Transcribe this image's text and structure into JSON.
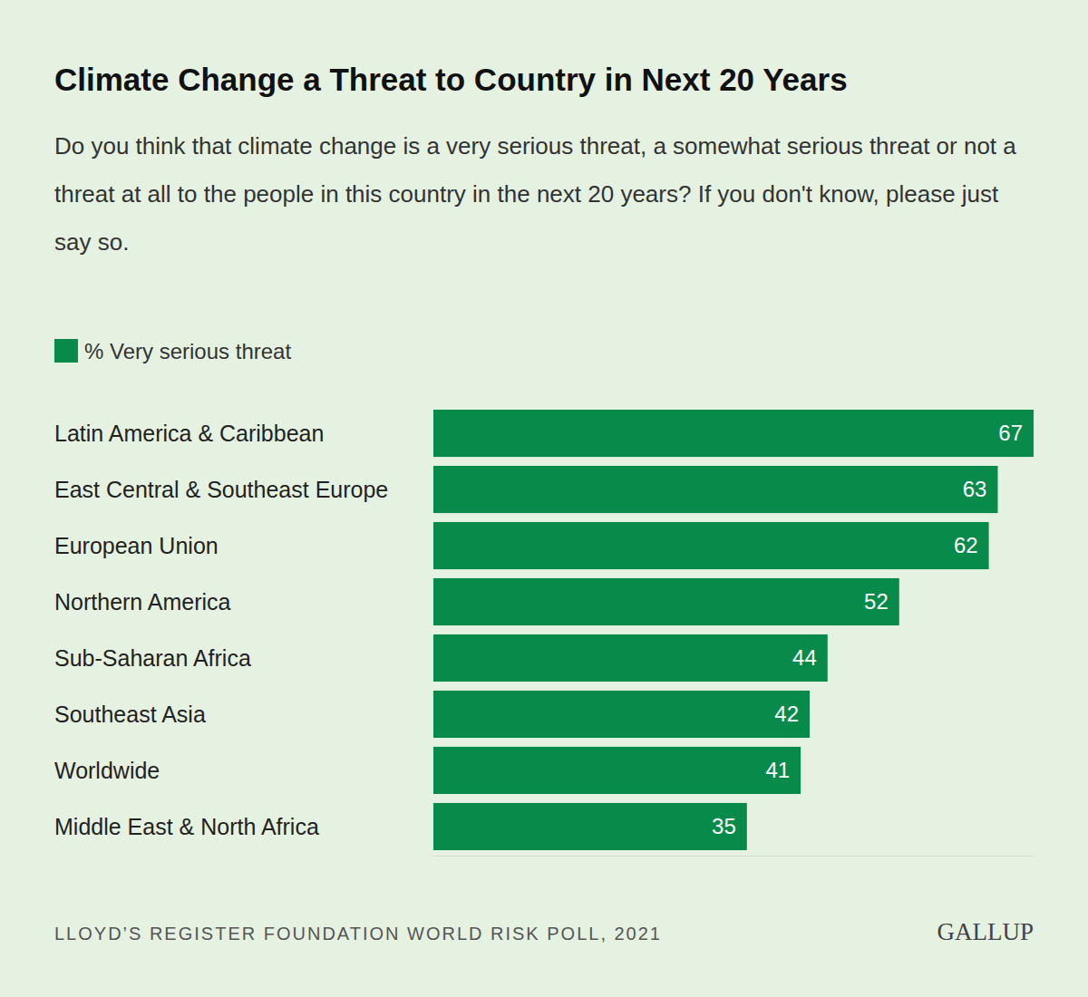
{
  "chart_data": {
    "type": "bar",
    "orientation": "horizontal",
    "title": "Climate Change a Threat to Country in Next 20 Years",
    "subtitle": "Do you think that climate change is a very serious threat, a somewhat serious threat or not a threat at all to the people in this country in the next 20 years? If you don't know, please just say so.",
    "categories": [
      "Latin America & Caribbean",
      "East Central & Southeast Europe",
      "European Union",
      "Northern America",
      "Sub-Saharan Africa",
      "Southeast Asia",
      "Worldwide",
      "Middle East & North Africa"
    ],
    "series": [
      {
        "name": "% Very serious threat",
        "color": "#078a4a",
        "values": [
          67,
          63,
          62,
          52,
          44,
          42,
          41,
          35
        ]
      }
    ],
    "xlim": [
      0,
      67
    ],
    "tick_labels": false,
    "grid": false,
    "legend": "top-left",
    "data_labels": true,
    "annotations": [
      "LLOYD’S REGISTER FOUNDATION WORLD RISK POLL, 2021",
      "GALLUP"
    ]
  }
}
